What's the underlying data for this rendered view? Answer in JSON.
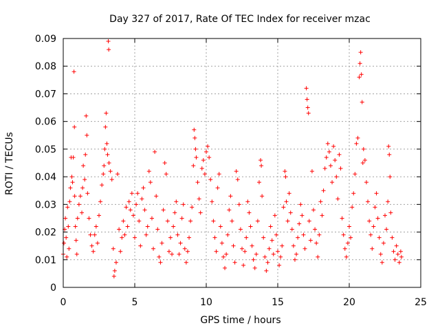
{
  "chart_data": {
    "type": "scatter",
    "title": "Day 327 of 2017, Rate Of TEC Index for receiver mzac",
    "xlabel": "GPS time / hours",
    "ylabel": "ROTI / TECUs",
    "xlim": [
      0,
      25
    ],
    "ylim": [
      0,
      0.09
    ],
    "x_ticks": [
      0,
      5,
      10,
      15,
      20,
      25
    ],
    "x_tick_labels": [
      "0",
      "5",
      "10",
      "15",
      "20",
      "25"
    ],
    "y_ticks": [
      0,
      0.01,
      0.02,
      0.03,
      0.04,
      0.05,
      0.06,
      0.07,
      0.08,
      0.09
    ],
    "y_tick_labels": [
      "0",
      "0.01",
      "0.02",
      "0.03",
      "0.04",
      "0.05",
      "0.06",
      "0.07",
      "0.08",
      "0.09"
    ],
    "grid": true,
    "marker": "+",
    "color": "#ff0000",
    "series": [
      {
        "name": "ROTI",
        "points": [
          [
            0.0,
            0.012
          ],
          [
            0.05,
            0.016
          ],
          [
            0.1,
            0.021
          ],
          [
            0.15,
            0.025
          ],
          [
            0.2,
            0.018
          ],
          [
            0.25,
            0.011
          ],
          [
            0.3,
            0.029
          ],
          [
            0.35,
            0.022
          ],
          [
            0.4,
            0.014
          ],
          [
            0.45,
            0.031
          ],
          [
            0.5,
            0.036
          ],
          [
            0.55,
            0.047
          ],
          [
            0.6,
            0.04
          ],
          [
            0.65,
            0.038
          ],
          [
            0.7,
            0.047
          ],
          [
            0.75,
            0.078
          ],
          [
            0.78,
            0.058
          ],
          [
            0.8,
            0.033
          ],
          [
            0.85,
            0.022
          ],
          [
            0.9,
            0.017
          ],
          [
            0.95,
            0.012
          ],
          [
            1.0,
            0.025
          ],
          [
            1.1,
            0.03
          ],
          [
            1.2,
            0.033
          ],
          [
            1.3,
            0.027
          ],
          [
            1.35,
            0.036
          ],
          [
            1.4,
            0.044
          ],
          [
            1.5,
            0.039
          ],
          [
            1.55,
            0.048
          ],
          [
            1.6,
            0.062
          ],
          [
            1.65,
            0.055
          ],
          [
            1.7,
            0.034
          ],
          [
            1.8,
            0.025
          ],
          [
            1.9,
            0.019
          ],
          [
            2.0,
            0.015
          ],
          [
            2.1,
            0.013
          ],
          [
            2.2,
            0.019
          ],
          [
            2.3,
            0.022
          ],
          [
            2.4,
            0.016
          ],
          [
            2.5,
            0.026
          ],
          [
            2.6,
            0.031
          ],
          [
            2.7,
            0.037
          ],
          [
            2.8,
            0.041
          ],
          [
            2.85,
            0.044
          ],
          [
            2.9,
            0.05
          ],
          [
            2.95,
            0.058
          ],
          [
            3.0,
            0.063
          ],
          [
            3.05,
            0.052
          ],
          [
            3.1,
            0.048
          ],
          [
            3.15,
            0.089
          ],
          [
            3.18,
            0.086
          ],
          [
            3.2,
            0.045
          ],
          [
            3.3,
            0.042
          ],
          [
            3.4,
            0.039
          ],
          [
            3.5,
            0.014
          ],
          [
            3.55,
            0.004
          ],
          [
            3.6,
            0.006
          ],
          [
            3.7,
            0.009
          ],
          [
            3.8,
            0.041
          ],
          [
            3.9,
            0.021
          ],
          [
            4.0,
            0.013
          ],
          [
            4.1,
            0.018
          ],
          [
            4.2,
            0.024
          ],
          [
            4.3,
            0.019
          ],
          [
            4.4,
            0.029
          ],
          [
            4.5,
            0.022
          ],
          [
            4.6,
            0.031
          ],
          [
            4.7,
            0.028
          ],
          [
            4.8,
            0.034
          ],
          [
            4.9,
            0.026
          ],
          [
            5.0,
            0.018
          ],
          [
            5.1,
            0.03
          ],
          [
            5.2,
            0.034
          ],
          [
            5.3,
            0.024
          ],
          [
            5.4,
            0.015
          ],
          [
            5.5,
            0.032
          ],
          [
            5.6,
            0.036
          ],
          [
            5.7,
            0.028
          ],
          [
            5.8,
            0.019
          ],
          [
            5.9,
            0.022
          ],
          [
            6.0,
            0.042
          ],
          [
            6.1,
            0.038
          ],
          [
            6.2,
            0.025
          ],
          [
            6.3,
            0.014
          ],
          [
            6.4,
            0.049
          ],
          [
            6.5,
            0.033
          ],
          [
            6.6,
            0.021
          ],
          [
            6.7,
            0.011
          ],
          [
            6.8,
            0.009
          ],
          [
            6.9,
            0.016
          ],
          [
            7.0,
            0.028
          ],
          [
            7.1,
            0.045
          ],
          [
            7.2,
            0.041
          ],
          [
            7.3,
            0.024
          ],
          [
            7.4,
            0.013
          ],
          [
            7.5,
            0.018
          ],
          [
            7.6,
            0.012
          ],
          [
            7.7,
            0.022
          ],
          [
            7.8,
            0.027
          ],
          [
            7.9,
            0.031
          ],
          [
            8.0,
            0.019
          ],
          [
            8.1,
            0.012
          ],
          [
            8.2,
            0.016
          ],
          [
            8.3,
            0.025
          ],
          [
            8.4,
            0.03
          ],
          [
            8.5,
            0.014
          ],
          [
            8.6,
            0.009
          ],
          [
            8.7,
            0.013
          ],
          [
            8.8,
            0.018
          ],
          [
            8.9,
            0.024
          ],
          [
            9.0,
            0.029
          ],
          [
            9.1,
            0.044
          ],
          [
            9.15,
            0.057
          ],
          [
            9.2,
            0.054
          ],
          [
            9.25,
            0.05
          ],
          [
            9.3,
            0.047
          ],
          [
            9.4,
            0.038
          ],
          [
            9.5,
            0.032
          ],
          [
            9.6,
            0.027
          ],
          [
            9.7,
            0.043
          ],
          [
            9.8,
            0.046
          ],
          [
            9.9,
            0.041
          ],
          [
            10.0,
            0.049
          ],
          [
            10.1,
            0.051
          ],
          [
            10.2,
            0.047
          ],
          [
            10.3,
            0.039
          ],
          [
            10.4,
            0.031
          ],
          [
            10.5,
            0.024
          ],
          [
            10.6,
            0.018
          ],
          [
            10.7,
            0.013
          ],
          [
            10.8,
            0.036
          ],
          [
            10.9,
            0.041
          ],
          [
            11.0,
            0.022
          ],
          [
            11.1,
            0.016
          ],
          [
            11.2,
            0.011
          ],
          [
            11.3,
            0.007
          ],
          [
            11.4,
            0.012
          ],
          [
            11.5,
            0.019
          ],
          [
            11.6,
            0.028
          ],
          [
            11.7,
            0.033
          ],
          [
            11.8,
            0.024
          ],
          [
            11.9,
            0.015
          ],
          [
            12.0,
            0.009
          ],
          [
            12.1,
            0.042
          ],
          [
            12.2,
            0.039
          ],
          [
            12.3,
            0.03
          ],
          [
            12.4,
            0.021
          ],
          [
            12.5,
            0.014
          ],
          [
            12.6,
            0.008
          ],
          [
            12.7,
            0.013
          ],
          [
            12.8,
            0.018
          ],
          [
            12.9,
            0.031
          ],
          [
            13.0,
            0.027
          ],
          [
            13.1,
            0.022
          ],
          [
            13.2,
            0.015
          ],
          [
            13.3,
            0.01
          ],
          [
            13.4,
            0.007
          ],
          [
            13.5,
            0.012
          ],
          [
            13.6,
            0.024
          ],
          [
            13.7,
            0.038
          ],
          [
            13.8,
            0.046
          ],
          [
            13.85,
            0.044
          ],
          [
            13.9,
            0.033
          ],
          [
            14.0,
            0.018
          ],
          [
            14.1,
            0.011
          ],
          [
            14.2,
            0.006
          ],
          [
            14.3,
            0.009
          ],
          [
            14.4,
            0.014
          ],
          [
            14.5,
            0.022
          ],
          [
            14.6,
            0.017
          ],
          [
            14.7,
            0.012
          ],
          [
            14.8,
            0.026
          ],
          [
            14.9,
            0.019
          ],
          [
            15.0,
            0.013
          ],
          [
            15.1,
            0.008
          ],
          [
            15.2,
            0.011
          ],
          [
            15.3,
            0.015
          ],
          [
            15.4,
            0.029
          ],
          [
            15.5,
            0.042
          ],
          [
            15.55,
            0.04
          ],
          [
            15.6,
            0.031
          ],
          [
            15.7,
            0.024
          ],
          [
            15.8,
            0.034
          ],
          [
            15.9,
            0.027
          ],
          [
            16.0,
            0.021
          ],
          [
            16.1,
            0.015
          ],
          [
            16.2,
            0.01
          ],
          [
            16.3,
            0.012
          ],
          [
            16.4,
            0.018
          ],
          [
            16.5,
            0.023
          ],
          [
            16.6,
            0.03
          ],
          [
            16.7,
            0.026
          ],
          [
            16.8,
            0.019
          ],
          [
            16.9,
            0.014
          ],
          [
            17.0,
            0.072
          ],
          [
            17.05,
            0.068
          ],
          [
            17.1,
            0.065
          ],
          [
            17.15,
            0.063
          ],
          [
            17.2,
            0.024
          ],
          [
            17.3,
            0.017
          ],
          [
            17.4,
            0.042
          ],
          [
            17.5,
            0.028
          ],
          [
            17.6,
            0.021
          ],
          [
            17.7,
            0.016
          ],
          [
            17.8,
            0.011
          ],
          [
            17.9,
            0.019
          ],
          [
            18.0,
            0.031
          ],
          [
            18.1,
            0.026
          ],
          [
            18.2,
            0.035
          ],
          [
            18.3,
            0.043
          ],
          [
            18.4,
            0.047
          ],
          [
            18.5,
            0.052
          ],
          [
            18.6,
            0.049
          ],
          [
            18.7,
            0.044
          ],
          [
            18.8,
            0.038
          ],
          [
            18.9,
            0.051
          ],
          [
            19.0,
            0.046
          ],
          [
            19.1,
            0.04
          ],
          [
            19.2,
            0.032
          ],
          [
            19.3,
            0.048
          ],
          [
            19.4,
            0.043
          ],
          [
            19.5,
            0.025
          ],
          [
            19.6,
            0.019
          ],
          [
            19.7,
            0.014
          ],
          [
            19.8,
            0.011
          ],
          [
            19.9,
            0.016
          ],
          [
            20.0,
            0.022
          ],
          [
            20.1,
            0.018
          ],
          [
            20.2,
            0.029
          ],
          [
            20.3,
            0.034
          ],
          [
            20.4,
            0.041
          ],
          [
            20.5,
            0.052
          ],
          [
            20.6,
            0.054
          ],
          [
            20.7,
            0.076
          ],
          [
            20.75,
            0.081
          ],
          [
            20.8,
            0.085
          ],
          [
            20.85,
            0.077
          ],
          [
            20.9,
            0.067
          ],
          [
            20.95,
            0.045
          ],
          [
            21.0,
            0.05
          ],
          [
            21.1,
            0.046
          ],
          [
            21.2,
            0.038
          ],
          [
            21.3,
            0.031
          ],
          [
            21.4,
            0.024
          ],
          [
            21.5,
            0.019
          ],
          [
            21.6,
            0.014
          ],
          [
            21.7,
            0.022
          ],
          [
            21.8,
            0.029
          ],
          [
            21.9,
            0.034
          ],
          [
            22.0,
            0.025
          ],
          [
            22.1,
            0.018
          ],
          [
            22.2,
            0.012
          ],
          [
            22.3,
            0.009
          ],
          [
            22.4,
            0.016
          ],
          [
            22.5,
            0.026
          ],
          [
            22.6,
            0.021
          ],
          [
            22.7,
            0.031
          ],
          [
            22.75,
            0.051
          ],
          [
            22.8,
            0.048
          ],
          [
            22.85,
            0.04
          ],
          [
            22.9,
            0.027
          ],
          [
            23.0,
            0.018
          ],
          [
            23.1,
            0.013
          ],
          [
            23.2,
            0.01
          ],
          [
            23.3,
            0.015
          ],
          [
            23.4,
            0.012
          ],
          [
            23.5,
            0.009
          ],
          [
            23.6,
            0.013
          ],
          [
            23.65,
            0.011
          ]
        ]
      }
    ]
  }
}
